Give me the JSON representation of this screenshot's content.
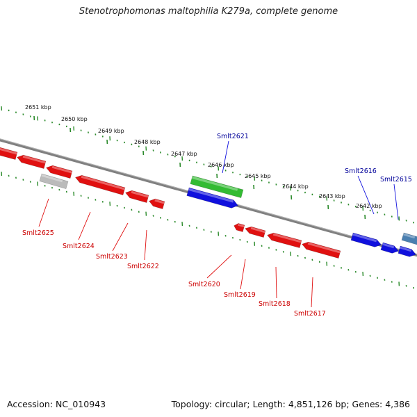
{
  "title": "Stenotrophomonas maltophilia K279a, complete genome",
  "footer": {
    "accession": "Accession: NC_010943",
    "summary": "Topology: circular; Length: 4,851,126 bp; Genes: 4,386"
  },
  "colors": {
    "minus_strand": "#e01010",
    "plus_strand": "#1010dd",
    "rna": "#33bb33",
    "other": "#bbbbbb",
    "steel": "#4a7fb0",
    "axis": "#808080",
    "ruler": "#2a8a2a",
    "label_minus": "#cc0000",
    "label_plus": "#000099"
  },
  "ruler_ticks": [
    {
      "label": "2651 kbp"
    },
    {
      "label": "2650 kbp"
    },
    {
      "label": "2649 kbp"
    },
    {
      "label": "2648 kbp"
    },
    {
      "label": "2647 kbp"
    },
    {
      "label": "2646 kbp"
    },
    {
      "label": "2645 kbp"
    },
    {
      "label": "2644 kbp"
    },
    {
      "label": "2643 kbp"
    },
    {
      "label": "2642 kbp"
    }
  ],
  "genes_labeled": [
    {
      "name": "Smlt2621",
      "strand": "plus"
    },
    {
      "name": "Smlt2616",
      "strand": "plus"
    },
    {
      "name": "Smlt2615",
      "strand": "plus"
    },
    {
      "name": "Smlt2625",
      "strand": "minus"
    },
    {
      "name": "Smlt2624",
      "strand": "minus"
    },
    {
      "name": "Smlt2623",
      "strand": "minus"
    },
    {
      "name": "Smlt2622",
      "strand": "minus"
    },
    {
      "name": "Smlt2620",
      "strand": "minus"
    },
    {
      "name": "Smlt2619",
      "strand": "minus"
    },
    {
      "name": "Smlt2618",
      "strand": "minus"
    },
    {
      "name": "Smlt2617",
      "strand": "minus"
    }
  ]
}
